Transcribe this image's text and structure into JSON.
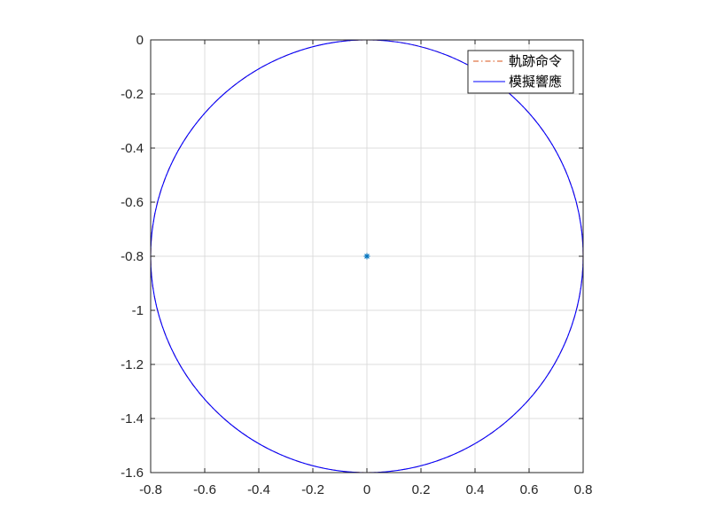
{
  "chart_data": {
    "type": "line",
    "title": "",
    "xlabel": "",
    "ylabel": "",
    "xlim": [
      -0.8,
      0.8
    ],
    "ylim": [
      -1.6,
      0
    ],
    "xticks": [
      -0.8,
      -0.6,
      -0.4,
      -0.2,
      0,
      0.2,
      0.4,
      0.6,
      0.8
    ],
    "yticks": [
      0,
      -0.2,
      -0.4,
      -0.6,
      -0.8,
      -1,
      -1.2,
      -1.4,
      -1.6
    ],
    "xtick_labels": [
      "-0.8",
      "-0.6",
      "-0.4",
      "-0.2",
      "0",
      "0.2",
      "0.4",
      "0.6",
      "0.8"
    ],
    "ytick_labels": [
      "0",
      "-0.2",
      "-0.4",
      "-0.6",
      "-0.8",
      "-1",
      "-1.2",
      "-1.4",
      "-1.6"
    ],
    "grid": true,
    "legend_position": "top-right",
    "series": [
      {
        "name": "軌跡命令",
        "style": "dash-dot",
        "color": "#d95319",
        "shape": "circle",
        "center": [
          0,
          -0.8
        ],
        "radius": 0.8
      },
      {
        "name": "模擬響應",
        "style": "solid",
        "color": "#0000ff",
        "shape": "circle",
        "center": [
          0,
          -0.8
        ],
        "radius": 0.8
      }
    ],
    "markers": [
      {
        "x": 0,
        "y": -0.8,
        "symbol": "*",
        "color": "#0072bd"
      }
    ]
  }
}
